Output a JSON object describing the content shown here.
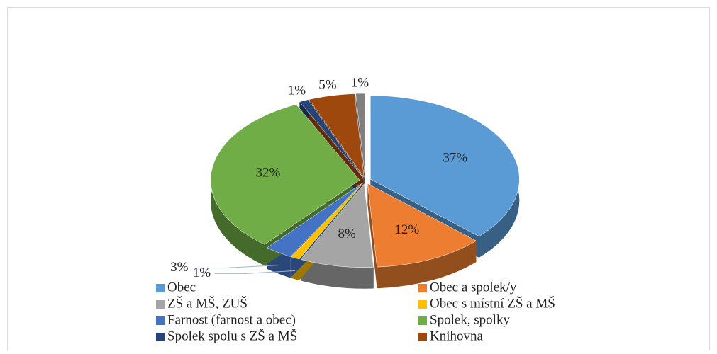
{
  "chart_data": {
    "type": "pie3d",
    "categories": [
      "Obec",
      "Obec a spolek/y",
      "ZŠ a MŠ, ZUŠ",
      "Obec s místní ZŠ a MŠ",
      "Farnost (farnost a obec)",
      "Spolek, spolky",
      "Spolek spolu s ZŠ a MŠ",
      "Knihovna",
      null
    ],
    "values": [
      37,
      12,
      8,
      1,
      3,
      32,
      1,
      5,
      1
    ],
    "value_labels": [
      "37%",
      "12%",
      "8%",
      "1%",
      "3%",
      "32%",
      "1%",
      "5%",
      "1%"
    ],
    "colors": [
      "#5b9bd5",
      "#ed7d31",
      "#a5a5a5",
      "#ffc000",
      "#4472c4",
      "#70ad47",
      "#264478",
      "#9e480e",
      "#7f7f7f"
    ],
    "legend": "bottom"
  }
}
